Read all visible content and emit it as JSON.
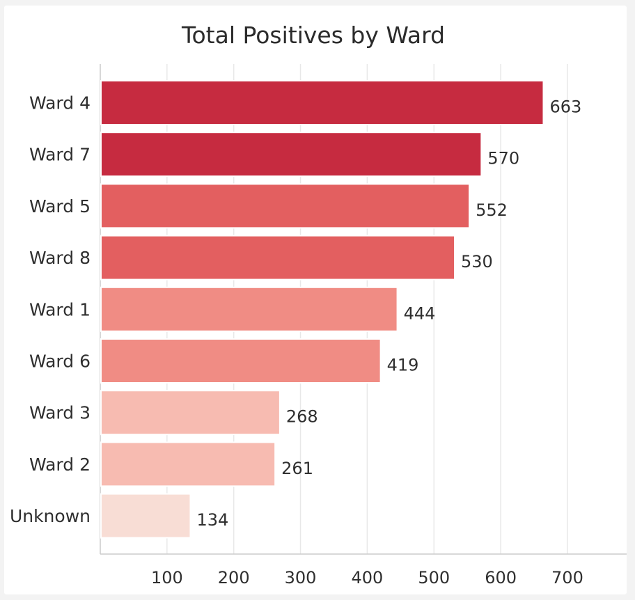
{
  "chart_data": {
    "type": "bar",
    "orientation": "horizontal",
    "title": "Total Positives by Ward",
    "categories": [
      "Ward 4",
      "Ward 7",
      "Ward 5",
      "Ward 8",
      "Ward 1",
      "Ward 6",
      "Ward 3",
      "Ward 2",
      "Unknown"
    ],
    "values": [
      663,
      570,
      552,
      530,
      444,
      419,
      268,
      261,
      134
    ],
    "colors": [
      "#c62b40",
      "#c62b40",
      "#e35f60",
      "#e35f60",
      "#f08c84",
      "#f08c84",
      "#f7bbb1",
      "#f7bbb1",
      "#f8ddd5"
    ],
    "xticks": [
      100,
      200,
      300,
      400,
      500,
      600,
      700
    ],
    "xlim": [
      0,
      790
    ],
    "grid": true,
    "legend": "none",
    "xlabel": "",
    "ylabel": ""
  }
}
